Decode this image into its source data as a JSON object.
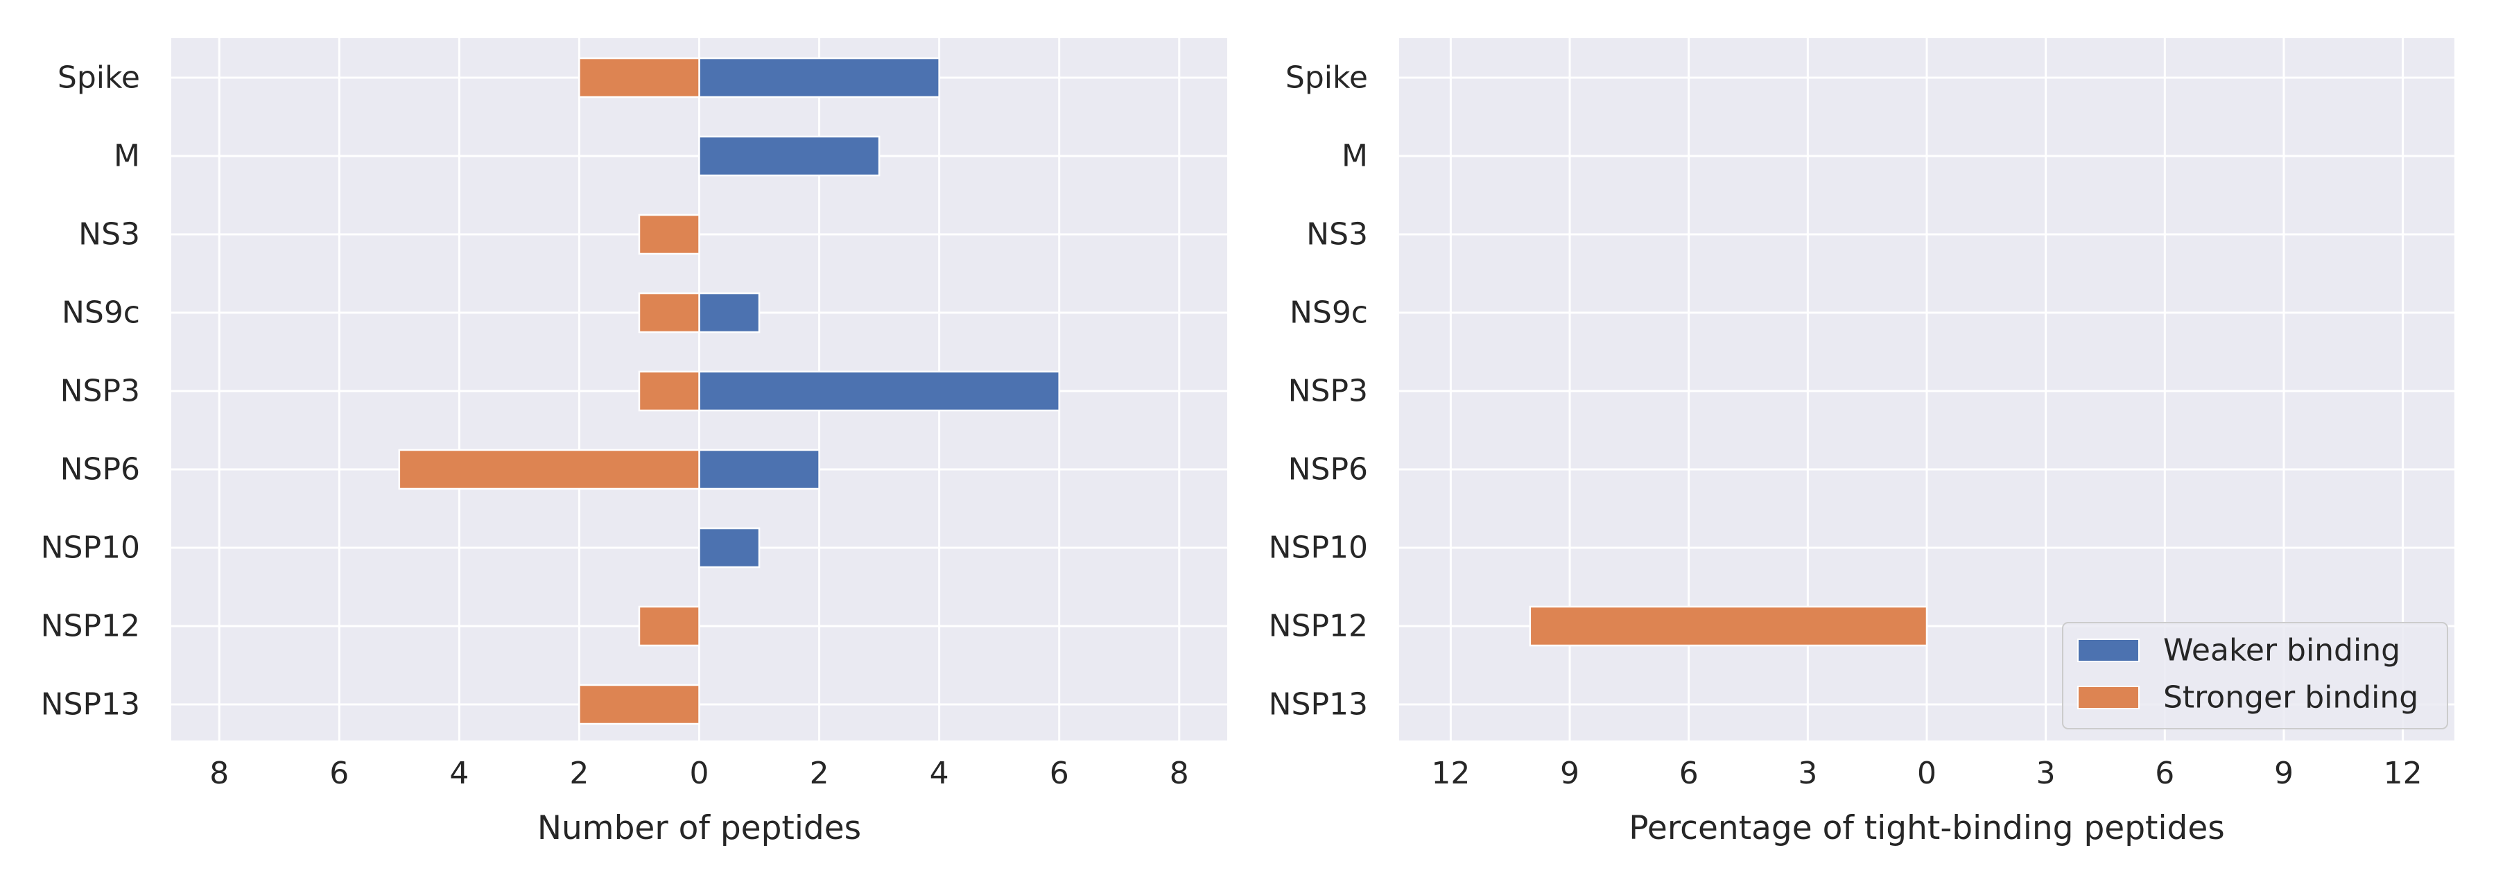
{
  "categories": [
    "Spike",
    "M",
    "NS3",
    "NS9c",
    "NSP3",
    "NSP6",
    "NSP10",
    "NSP12",
    "NSP13"
  ],
  "chart_data": [
    {
      "type": "bar",
      "orientation": "horizontal-diverging",
      "xlabel": "Number of peptides",
      "xlim": [
        -8.8,
        8.8
      ],
      "xticks": [
        -8,
        -6,
        -4,
        -2,
        0,
        2,
        4,
        6,
        8
      ],
      "xtick_labels": [
        "8",
        "6",
        "4",
        "2",
        "0",
        "2",
        "4",
        "6",
        "8"
      ],
      "grid": true,
      "series": [
        {
          "name": "Weaker binding",
          "color": "#4c72b0",
          "direction": "right",
          "values": [
            4,
            3,
            0,
            1,
            6,
            2,
            1,
            0,
            0
          ]
        },
        {
          "name": "Stronger binding",
          "color": "#dd8452",
          "direction": "left",
          "values": [
            2,
            0,
            1,
            1,
            1,
            5,
            0,
            1,
            2
          ]
        }
      ]
    },
    {
      "type": "bar",
      "orientation": "horizontal-diverging",
      "xlabel": "Percentage of tight-binding peptides",
      "xlim": [
        -13.3,
        13.3
      ],
      "xticks": [
        -12,
        -9,
        -6,
        -3,
        0,
        3,
        6,
        9,
        12
      ],
      "xtick_labels": [
        "12",
        "9",
        "6",
        "3",
        "0",
        "3",
        "6",
        "9",
        "12"
      ],
      "grid": true,
      "legend_position": "lower-right",
      "series": [
        {
          "name": "Weaker binding",
          "color": "#4c72b0",
          "direction": "right",
          "values": [
            0,
            0,
            0,
            0,
            0,
            0,
            0,
            0,
            0
          ]
        },
        {
          "name": "Stronger binding",
          "color": "#dd8452",
          "direction": "left",
          "values": [
            0,
            0,
            0,
            0,
            0,
            0,
            0,
            10,
            0
          ]
        }
      ]
    }
  ],
  "legend": {
    "items": [
      {
        "label": "Weaker binding",
        "color": "#4c72b0"
      },
      {
        "label": "Stronger binding",
        "color": "#dd8452"
      }
    ]
  }
}
